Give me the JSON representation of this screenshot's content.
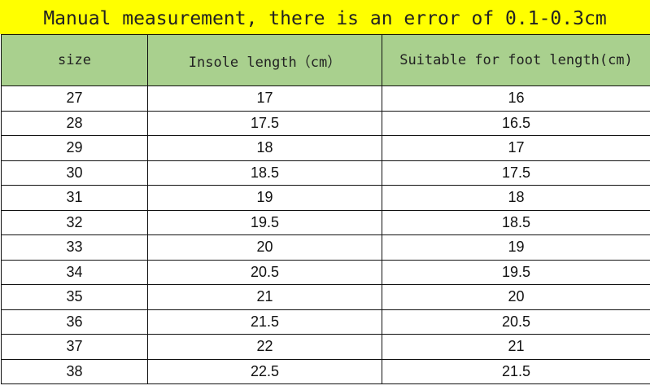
{
  "title": "Manual measurement, there is an error of 0.1-0.3cm",
  "colors": {
    "title_bg": "#ffff00",
    "header_bg": "#a9d08e"
  },
  "headers": [
    "size",
    "Insole length（cm）",
    "Suitable for foot length(cm)"
  ],
  "rows": [
    [
      "27",
      "17",
      "16"
    ],
    [
      "28",
      "17.5",
      "16.5"
    ],
    [
      "29",
      "18",
      "17"
    ],
    [
      "30",
      "18.5",
      "17.5"
    ],
    [
      "31",
      "19",
      "18"
    ],
    [
      "32",
      "19.5",
      "18.5"
    ],
    [
      "33",
      "20",
      "19"
    ],
    [
      "34",
      "20.5",
      "19.5"
    ],
    [
      "35",
      "21",
      "20"
    ],
    [
      "36",
      "21.5",
      "20.5"
    ],
    [
      "37",
      "22",
      "21"
    ],
    [
      "38",
      "22.5",
      "21.5"
    ]
  ]
}
